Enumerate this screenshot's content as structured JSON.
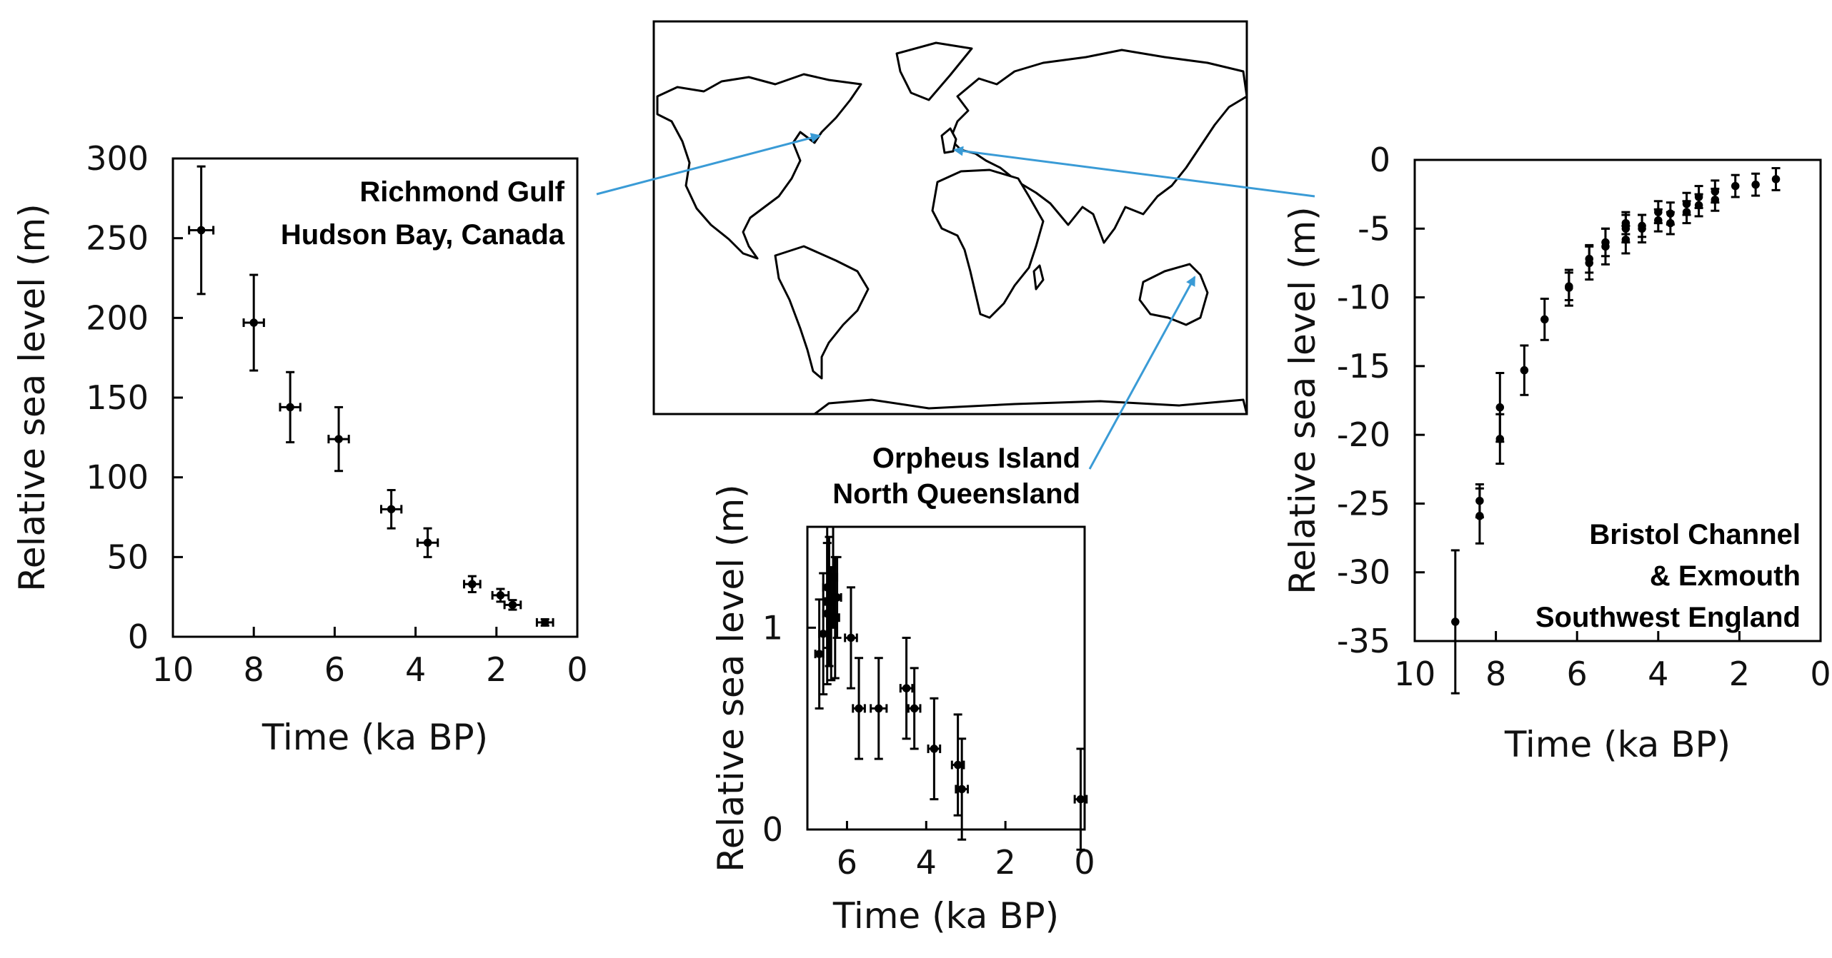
{
  "colors": {
    "connector": "#3a9bd6",
    "ink": "#000000"
  },
  "map": {
    "type": "world-outline-map",
    "markers": [
      "hudson-bay",
      "bristol-channel",
      "north-queensland"
    ]
  },
  "chart_data": [
    {
      "id": "richmond",
      "type": "scatter",
      "site_label": [
        "Richmond Gulf",
        "Hudson Bay, Canada"
      ],
      "xlabel": "Time (ka BP)",
      "ylabel": "Relative sea level (m)",
      "xlim": [
        10,
        0
      ],
      "ylim": [
        0,
        300
      ],
      "x_ticks": [
        10,
        8,
        6,
        4,
        2,
        0
      ],
      "y_ticks": [
        0,
        50,
        100,
        150,
        200,
        250,
        300
      ],
      "grid": false,
      "points": [
        {
          "x": 9.3,
          "y": 255,
          "xerr": 0.3,
          "yerr": 40
        },
        {
          "x": 8.0,
          "y": 197,
          "xerr": 0.25,
          "yerr": 30
        },
        {
          "x": 7.1,
          "y": 144,
          "xerr": 0.25,
          "yerr": 22
        },
        {
          "x": 5.9,
          "y": 124,
          "xerr": 0.25,
          "yerr": 20
        },
        {
          "x": 4.6,
          "y": 80,
          "xerr": 0.25,
          "yerr": 12
        },
        {
          "x": 3.7,
          "y": 59,
          "xerr": 0.25,
          "yerr": 9
        },
        {
          "x": 2.6,
          "y": 33,
          "xerr": 0.2,
          "yerr": 5
        },
        {
          "x": 1.9,
          "y": 26,
          "xerr": 0.2,
          "yerr": 4
        },
        {
          "x": 1.6,
          "y": 20,
          "xerr": 0.2,
          "yerr": 3
        },
        {
          "x": 0.8,
          "y": 9,
          "xerr": 0.2,
          "yerr": 2
        }
      ]
    },
    {
      "id": "orpheus",
      "type": "scatter",
      "site_label": [
        "Orpheus Island",
        "North Queensland"
      ],
      "xlabel": "Time (ka BP)",
      "ylabel": "Relative sea level (m)",
      "xlim": [
        7,
        0
      ],
      "ylim": [
        0,
        1.5
      ],
      "x_ticks": [
        6,
        4,
        2,
        0
      ],
      "y_ticks": [
        0,
        1
      ],
      "grid": false,
      "points": [
        {
          "x": 6.7,
          "y": 0.87,
          "xerr": 0.1,
          "yerr": 0.27
        },
        {
          "x": 6.6,
          "y": 0.97,
          "xerr": 0.1,
          "yerr": 0.3
        },
        {
          "x": 6.5,
          "y": 1.07,
          "xerr": 0.1,
          "yerr": 0.35
        },
        {
          "x": 6.5,
          "y": 1.2,
          "xerr": 0.1,
          "yerr": 0.3
        },
        {
          "x": 6.45,
          "y": 1.13,
          "xerr": 0.1,
          "yerr": 0.32
        },
        {
          "x": 6.4,
          "y": 1.02,
          "xerr": 0.1,
          "yerr": 0.28
        },
        {
          "x": 6.35,
          "y": 1.25,
          "xerr": 0.1,
          "yerr": 0.25
        },
        {
          "x": 6.3,
          "y": 1.05,
          "xerr": 0.1,
          "yerr": 0.3
        },
        {
          "x": 6.25,
          "y": 1.15,
          "xerr": 0.1,
          "yerr": 0.2
        },
        {
          "x": 5.9,
          "y": 0.95,
          "xerr": 0.15,
          "yerr": 0.25
        },
        {
          "x": 5.7,
          "y": 0.6,
          "xerr": 0.15,
          "yerr": 0.25
        },
        {
          "x": 5.2,
          "y": 0.6,
          "xerr": 0.2,
          "yerr": 0.25
        },
        {
          "x": 4.5,
          "y": 0.7,
          "xerr": 0.15,
          "yerr": 0.25
        },
        {
          "x": 4.3,
          "y": 0.6,
          "xerr": 0.15,
          "yerr": 0.2
        },
        {
          "x": 3.8,
          "y": 0.4,
          "xerr": 0.15,
          "yerr": 0.25
        },
        {
          "x": 3.2,
          "y": 0.32,
          "xerr": 0.15,
          "yerr": 0.25
        },
        {
          "x": 3.1,
          "y": 0.2,
          "xerr": 0.15,
          "yerr": 0.25
        },
        {
          "x": 0.1,
          "y": 0.15,
          "xerr": 0.15,
          "yerr": 0.25
        }
      ]
    },
    {
      "id": "bristol",
      "type": "scatter",
      "site_label": [
        "Bristol Channel",
        "& Exmouth",
        "Southwest England"
      ],
      "xlabel": "Time (ka BP)",
      "ylabel": "Relative sea level (m)",
      "xlim": [
        10,
        0
      ],
      "ylim": [
        -35,
        0
      ],
      "x_ticks": [
        10,
        8,
        6,
        4,
        2,
        0
      ],
      "y_ticks": [
        0,
        -5,
        -10,
        -15,
        -20,
        -25,
        -30,
        -35
      ],
      "grid": false,
      "points": [
        {
          "x": 9.0,
          "y": -33.6,
          "xerr": 0,
          "yerr": 5.2
        },
        {
          "x": 8.4,
          "y": -25.9,
          "xerr": 0,
          "yerr": 2.0
        },
        {
          "x": 8.4,
          "y": -24.8,
          "xerr": 0,
          "yerr": 1.2
        },
        {
          "x": 7.9,
          "y": -20.3,
          "xerr": 0,
          "yerr": 1.8
        },
        {
          "x": 7.9,
          "y": -18.0,
          "xerr": 0,
          "yerr": 2.5
        },
        {
          "x": 7.3,
          "y": -15.3,
          "xerr": 0,
          "yerr": 1.8
        },
        {
          "x": 6.8,
          "y": -11.6,
          "xerr": 0,
          "yerr": 1.5
        },
        {
          "x": 6.2,
          "y": -9.3,
          "xerr": 0,
          "yerr": 1.3
        },
        {
          "x": 6.2,
          "y": -9.2,
          "xerr": 0,
          "yerr": 1.0
        },
        {
          "x": 5.7,
          "y": -7.5,
          "xerr": 0,
          "yerr": 1.2
        },
        {
          "x": 5.7,
          "y": -7.2,
          "xerr": 0,
          "yerr": 1.0
        },
        {
          "x": 5.3,
          "y": -6.3,
          "xerr": 0,
          "yerr": 1.3
        },
        {
          "x": 5.3,
          "y": -6.0,
          "xerr": 0,
          "yerr": 1.0
        },
        {
          "x": 4.8,
          "y": -5.8,
          "xerr": 0,
          "yerr": 1.0
        },
        {
          "x": 4.8,
          "y": -5.0,
          "xerr": 0,
          "yerr": 1.0
        },
        {
          "x": 4.8,
          "y": -4.6,
          "xerr": 0,
          "yerr": 0.8
        },
        {
          "x": 4.4,
          "y": -5.0,
          "xerr": 0,
          "yerr": 1.0
        },
        {
          "x": 4.4,
          "y": -4.8,
          "xerr": 0,
          "yerr": 0.8
        },
        {
          "x": 4.0,
          "y": -4.4,
          "xerr": 0,
          "yerr": 0.8
        },
        {
          "x": 4.0,
          "y": -3.8,
          "xerr": 0,
          "yerr": 0.8
        },
        {
          "x": 3.7,
          "y": -4.6,
          "xerr": 0,
          "yerr": 0.8
        },
        {
          "x": 3.7,
          "y": -3.9,
          "xerr": 0,
          "yerr": 0.8
        },
        {
          "x": 3.3,
          "y": -3.8,
          "xerr": 0,
          "yerr": 0.8
        },
        {
          "x": 3.3,
          "y": -3.2,
          "xerr": 0,
          "yerr": 0.8
        },
        {
          "x": 3.0,
          "y": -3.3,
          "xerr": 0,
          "yerr": 0.8
        },
        {
          "x": 3.0,
          "y": -2.7,
          "xerr": 0,
          "yerr": 0.8
        },
        {
          "x": 2.6,
          "y": -2.9,
          "xerr": 0,
          "yerr": 0.8
        },
        {
          "x": 2.6,
          "y": -2.3,
          "xerr": 0,
          "yerr": 0.8
        },
        {
          "x": 2.1,
          "y": -1.9,
          "xerr": 0,
          "yerr": 0.8
        },
        {
          "x": 1.6,
          "y": -1.8,
          "xerr": 0,
          "yerr": 0.8
        },
        {
          "x": 1.1,
          "y": -1.4,
          "xerr": 0,
          "yerr": 0.8
        }
      ]
    }
  ]
}
